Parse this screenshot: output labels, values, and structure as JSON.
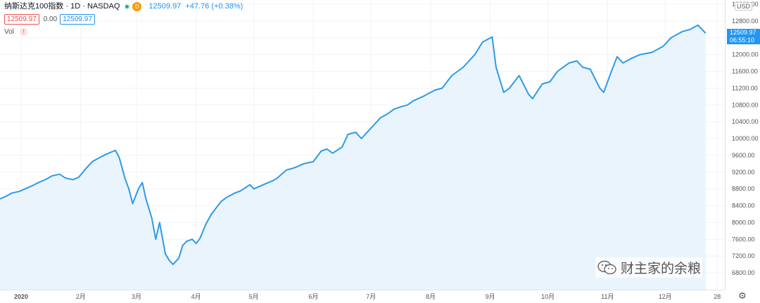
{
  "header": {
    "symbol": "纳斯达克100指数 · 1D · NASDAQ",
    "badge_d": "D",
    "last": "12509.97",
    "change": "+47.76 (+0.38%)",
    "box_red": "12509.97",
    "mid_value": "0.00",
    "box_blue": "12509.97",
    "vol_label": "Vol",
    "vol_warn": "!"
  },
  "price_axis": {
    "currency": "USD",
    "last_price": "12509.97",
    "countdown": "06:55:10"
  },
  "watermark": {
    "text": "财主家的余粮"
  },
  "colors": {
    "line": "#2e9be6",
    "fill": "#eaf4fd",
    "label": "#2196f3"
  },
  "chart_data": {
    "type": "area",
    "title": "",
    "xlabel": "",
    "ylabel": "",
    "ylim": [
      6400,
      13300
    ],
    "y_ticks": [
      6800,
      7200,
      7600,
      8000,
      8400,
      8800,
      9200,
      9600,
      10000,
      10400,
      10800,
      11200,
      11600,
      12000,
      12400,
      12800,
      13200
    ],
    "x_tick_labels": [
      "2020",
      "2月",
      "3月",
      "4月",
      "5月",
      "6月",
      "7月",
      "8月",
      "9月",
      "10月",
      "11月",
      "12月",
      "28"
    ],
    "x_tick_dates": [
      "2020-01-01",
      "2020-02-01",
      "2020-03-01",
      "2020-04-01",
      "2020-05-01",
      "2020-06-01",
      "2020-07-01",
      "2020-08-01",
      "2020-09-01",
      "2020-10-01",
      "2020-11-01",
      "2020-12-01",
      "2020-12-28"
    ],
    "x_range": [
      "2019-12-21",
      "2021-01-01"
    ],
    "grid": true,
    "series": [
      {
        "x": [
          "2019-12-21",
          "2019-12-24",
          "2019-12-27",
          "2019-12-31",
          "2020-01-03",
          "2020-01-07",
          "2020-01-10",
          "2020-01-14",
          "2020-01-17",
          "2020-01-21",
          "2020-01-24",
          "2020-01-28",
          "2020-01-31",
          "2020-02-04",
          "2020-02-07",
          "2020-02-11",
          "2020-02-14",
          "2020-02-18",
          "2020-02-19",
          "2020-02-21",
          "2020-02-24",
          "2020-02-26",
          "2020-02-28",
          "2020-03-02",
          "2020-03-04",
          "2020-03-06",
          "2020-03-09",
          "2020-03-11",
          "2020-03-13",
          "2020-03-16",
          "2020-03-18",
          "2020-03-20",
          "2020-03-23",
          "2020-03-25",
          "2020-03-27",
          "2020-03-30",
          "2020-04-01",
          "2020-04-03",
          "2020-04-06",
          "2020-04-09",
          "2020-04-14",
          "2020-04-17",
          "2020-04-21",
          "2020-04-24",
          "2020-04-29",
          "2020-05-01",
          "2020-05-06",
          "2020-05-11",
          "2020-05-13",
          "2020-05-18",
          "2020-05-22",
          "2020-05-27",
          "2020-06-01",
          "2020-06-05",
          "2020-06-08",
          "2020-06-11",
          "2020-06-16",
          "2020-06-19",
          "2020-06-23",
          "2020-06-26",
          "2020-07-01",
          "2020-07-06",
          "2020-07-10",
          "2020-07-13",
          "2020-07-16",
          "2020-07-20",
          "2020-07-23",
          "2020-07-28",
          "2020-08-03",
          "2020-08-07",
          "2020-08-12",
          "2020-08-18",
          "2020-08-24",
          "2020-08-28",
          "2020-09-02",
          "2020-09-04",
          "2020-09-08",
          "2020-09-11",
          "2020-09-16",
          "2020-09-21",
          "2020-09-23",
          "2020-09-28",
          "2020-10-02",
          "2020-10-06",
          "2020-10-12",
          "2020-10-16",
          "2020-10-19",
          "2020-10-23",
          "2020-10-28",
          "2020-10-30",
          "2020-11-03",
          "2020-11-06",
          "2020-11-09",
          "2020-11-13",
          "2020-11-18",
          "2020-11-24",
          "2020-11-30",
          "2020-12-04",
          "2020-12-08",
          "2020-12-10",
          "2020-12-14",
          "2020-12-18",
          "2020-12-22"
        ],
        "y": [
          8560,
          8620,
          8700,
          8740,
          8800,
          8880,
          8950,
          9030,
          9110,
          9150,
          9060,
          9020,
          9080,
          9300,
          9450,
          9550,
          9620,
          9700,
          9720,
          9550,
          9050,
          8800,
          8450,
          8800,
          8950,
          8550,
          8100,
          7600,
          8000,
          7250,
          7100,
          7000,
          7150,
          7450,
          7550,
          7600,
          7500,
          7620,
          7950,
          8200,
          8500,
          8600,
          8700,
          8750,
          8900,
          8800,
          8900,
          9000,
          9050,
          9250,
          9300,
          9400,
          9450,
          9700,
          9750,
          9650,
          9800,
          10100,
          10150,
          10000,
          10250,
          10500,
          10600,
          10700,
          10750,
          10800,
          10900,
          11000,
          11150,
          11200,
          11500,
          11700,
          12000,
          12300,
          12420,
          11700,
          11100,
          11200,
          11500,
          11050,
          10950,
          11300,
          11350,
          11600,
          11800,
          11850,
          11700,
          11650,
          11200,
          11100,
          11600,
          11950,
          11800,
          11900,
          12000,
          12050,
          12200,
          12400,
          12500,
          12550,
          12600,
          12700,
          12509.97
        ]
      }
    ]
  }
}
